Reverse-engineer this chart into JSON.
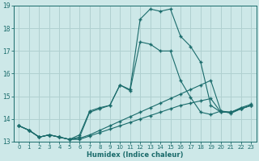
{
  "xlabel": "Humidex (Indice chaleur)",
  "xlim": [
    -0.5,
    23.5
  ],
  "ylim": [
    13,
    19
  ],
  "yticks": [
    13,
    14,
    15,
    16,
    17,
    18,
    19
  ],
  "xticks": [
    0,
    1,
    2,
    3,
    4,
    5,
    6,
    7,
    8,
    9,
    10,
    11,
    12,
    13,
    14,
    15,
    16,
    17,
    18,
    19,
    20,
    21,
    22,
    23
  ],
  "background_color": "#cde8e8",
  "grid_color": "#b0d0d0",
  "line_color": "#1a6b6b",
  "line1_x": [
    0,
    1,
    2,
    3,
    4,
    5,
    6,
    7,
    8,
    9,
    10,
    11,
    12,
    13,
    14,
    15,
    16,
    17,
    18,
    19,
    20,
    21,
    22,
    23
  ],
  "line1_y": [
    13.7,
    13.5,
    13.2,
    13.3,
    13.2,
    13.1,
    13.1,
    13.25,
    13.4,
    13.55,
    13.7,
    13.85,
    14.0,
    14.15,
    14.3,
    14.45,
    14.6,
    14.7,
    14.8,
    14.9,
    14.3,
    14.3,
    14.45,
    14.6
  ],
  "line2_x": [
    0,
    1,
    2,
    3,
    4,
    5,
    6,
    7,
    8,
    9,
    10,
    11,
    12,
    13,
    14,
    15,
    16,
    17,
    18,
    19,
    20,
    21,
    22,
    23
  ],
  "line2_y": [
    13.7,
    13.5,
    13.2,
    13.3,
    13.2,
    13.1,
    13.15,
    13.3,
    13.5,
    13.7,
    13.9,
    14.1,
    14.3,
    14.5,
    14.7,
    14.9,
    15.1,
    15.3,
    15.5,
    15.7,
    14.35,
    14.3,
    14.5,
    14.65
  ],
  "line3_x": [
    0,
    1,
    2,
    3,
    4,
    5,
    6,
    7,
    8,
    9,
    10,
    11,
    12,
    13,
    14,
    15,
    16,
    17,
    18,
    19,
    20,
    21,
    22,
    23
  ],
  "line3_y": [
    13.7,
    13.5,
    13.2,
    13.3,
    13.2,
    13.1,
    13.2,
    14.3,
    14.45,
    14.6,
    15.5,
    15.3,
    18.4,
    18.85,
    18.75,
    18.85,
    17.65,
    17.2,
    16.5,
    14.6,
    14.3,
    14.3,
    14.45,
    14.6
  ],
  "line4_x": [
    0,
    1,
    2,
    3,
    4,
    5,
    6,
    7,
    8,
    9,
    10,
    11,
    12,
    13,
    14,
    15,
    16,
    17,
    18,
    19,
    20,
    21,
    22,
    23
  ],
  "line4_y": [
    13.7,
    13.5,
    13.2,
    13.3,
    13.2,
    13.1,
    13.3,
    14.35,
    14.5,
    14.6,
    15.5,
    15.25,
    17.4,
    17.3,
    17.0,
    17.0,
    15.7,
    14.95,
    14.3,
    14.2,
    14.35,
    14.25,
    14.45,
    14.6
  ]
}
